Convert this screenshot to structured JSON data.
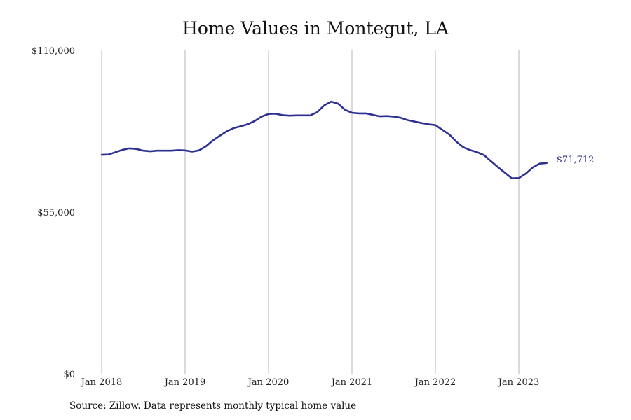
{
  "chart_data": {
    "type": "line",
    "title": "Home Values in Montegut, LA",
    "xlabel": "",
    "ylabel": "",
    "ylim": [
      0,
      110000
    ],
    "y_ticks": [
      0,
      55000,
      110000
    ],
    "y_tick_labels": [
      "$0",
      "$55,000",
      "$110,000"
    ],
    "x_ticks": [
      "2018-01",
      "2019-01",
      "2020-01",
      "2021-01",
      "2022-01",
      "2023-01"
    ],
    "x_tick_labels": [
      "Jan 2018",
      "Jan 2019",
      "Jan 2020",
      "Jan 2021",
      "Jan 2022",
      "Jan 2023"
    ],
    "grid": "vertical",
    "line_color": "#2e3192",
    "end_label": "$71,712",
    "series": [
      {
        "x": [
          "2018-01",
          "2018-02",
          "2018-03",
          "2018-04",
          "2018-05",
          "2018-06",
          "2018-07",
          "2018-08",
          "2018-09",
          "2018-10",
          "2018-11",
          "2018-12",
          "2019-01",
          "2019-02",
          "2019-03",
          "2019-04",
          "2019-05",
          "2019-06",
          "2019-07",
          "2019-08",
          "2019-09",
          "2019-10",
          "2019-11",
          "2019-12",
          "2020-01",
          "2020-02",
          "2020-03",
          "2020-04",
          "2020-05",
          "2020-06",
          "2020-07",
          "2020-08",
          "2020-09",
          "2020-10",
          "2020-11",
          "2020-12",
          "2021-01",
          "2021-02",
          "2021-03",
          "2021-04",
          "2021-05",
          "2021-06",
          "2021-07",
          "2021-08",
          "2021-09",
          "2021-10",
          "2021-11",
          "2021-12",
          "2022-01",
          "2022-02",
          "2022-03",
          "2022-04",
          "2022-05",
          "2022-06",
          "2022-07",
          "2022-08",
          "2022-09",
          "2022-10",
          "2022-11",
          "2022-12",
          "2023-01",
          "2023-02",
          "2023-03",
          "2023-04",
          "2023-05"
        ],
        "values": [
          74500,
          74600,
          75400,
          76200,
          76700,
          76500,
          75900,
          75700,
          75900,
          75900,
          75900,
          76100,
          76000,
          75600,
          76000,
          77400,
          79400,
          81000,
          82500,
          83600,
          84200,
          84900,
          86000,
          87500,
          88400,
          88500,
          88000,
          87800,
          87900,
          87900,
          87900,
          89000,
          91300,
          92600,
          91900,
          89800,
          88800,
          88600,
          88600,
          88100,
          87600,
          87700,
          87500,
          87100,
          86300,
          85800,
          85300,
          84900,
          84600,
          83000,
          81400,
          79000,
          77100,
          76100,
          75400,
          74400,
          72300,
          70300,
          68400,
          66500,
          66600,
          68100,
          70200,
          71500,
          71712
        ]
      }
    ]
  },
  "source_note": "Source: Zillow. Data represents monthly typical home value"
}
